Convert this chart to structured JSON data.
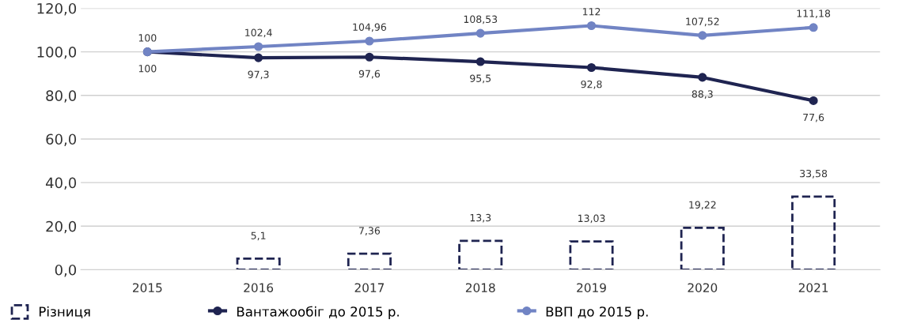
{
  "chart_data": {
    "type": "bar",
    "categories": [
      "2015",
      "2016",
      "2017",
      "2018",
      "2019",
      "2020",
      "2021"
    ],
    "series": [
      {
        "name": "Різниця",
        "color": "#1f2451",
        "values": [
          null,
          5.1,
          7.36,
          13.3,
          13.03,
          19.22,
          33.58
        ],
        "value_labels": [
          null,
          "5,1",
          "7,36",
          "13,3",
          "13,03",
          "19,22",
          "33,58"
        ],
        "line_style": "dashed"
      },
      {
        "name": "Вантажообіг до 2015 р.",
        "type": "line",
        "color": "#1f2451",
        "values": [
          100,
          97.3,
          97.6,
          95.5,
          92.8,
          88.3,
          77.6
        ],
        "value_labels": [
          "100",
          "97,3",
          "97,6",
          "95,5",
          "92,8",
          "88,3",
          "77,6"
        ]
      },
      {
        "name": "ВВП до 2015 р.",
        "type": "line",
        "color": "#7184c4",
        "values": [
          100,
          102.4,
          104.96,
          108.53,
          112,
          107.52,
          111.18
        ],
        "value_labels": [
          "100",
          "102,4",
          "104,96",
          "108,53",
          "112",
          "107,52",
          "111,18"
        ]
      }
    ],
    "ylim": [
      0,
      120
    ],
    "yticks": [
      {
        "value": 0,
        "label": "0,0"
      },
      {
        "value": 20,
        "label": "20,0"
      },
      {
        "value": 40,
        "label": "40,0"
      },
      {
        "value": 60,
        "label": "60,0"
      },
      {
        "value": 80,
        "label": "80,0"
      },
      {
        "value": 100,
        "label": "100,0"
      },
      {
        "value": 120,
        "label": "120,0"
      }
    ],
    "grid": "y",
    "legend": "bottom",
    "marker": "circle"
  }
}
